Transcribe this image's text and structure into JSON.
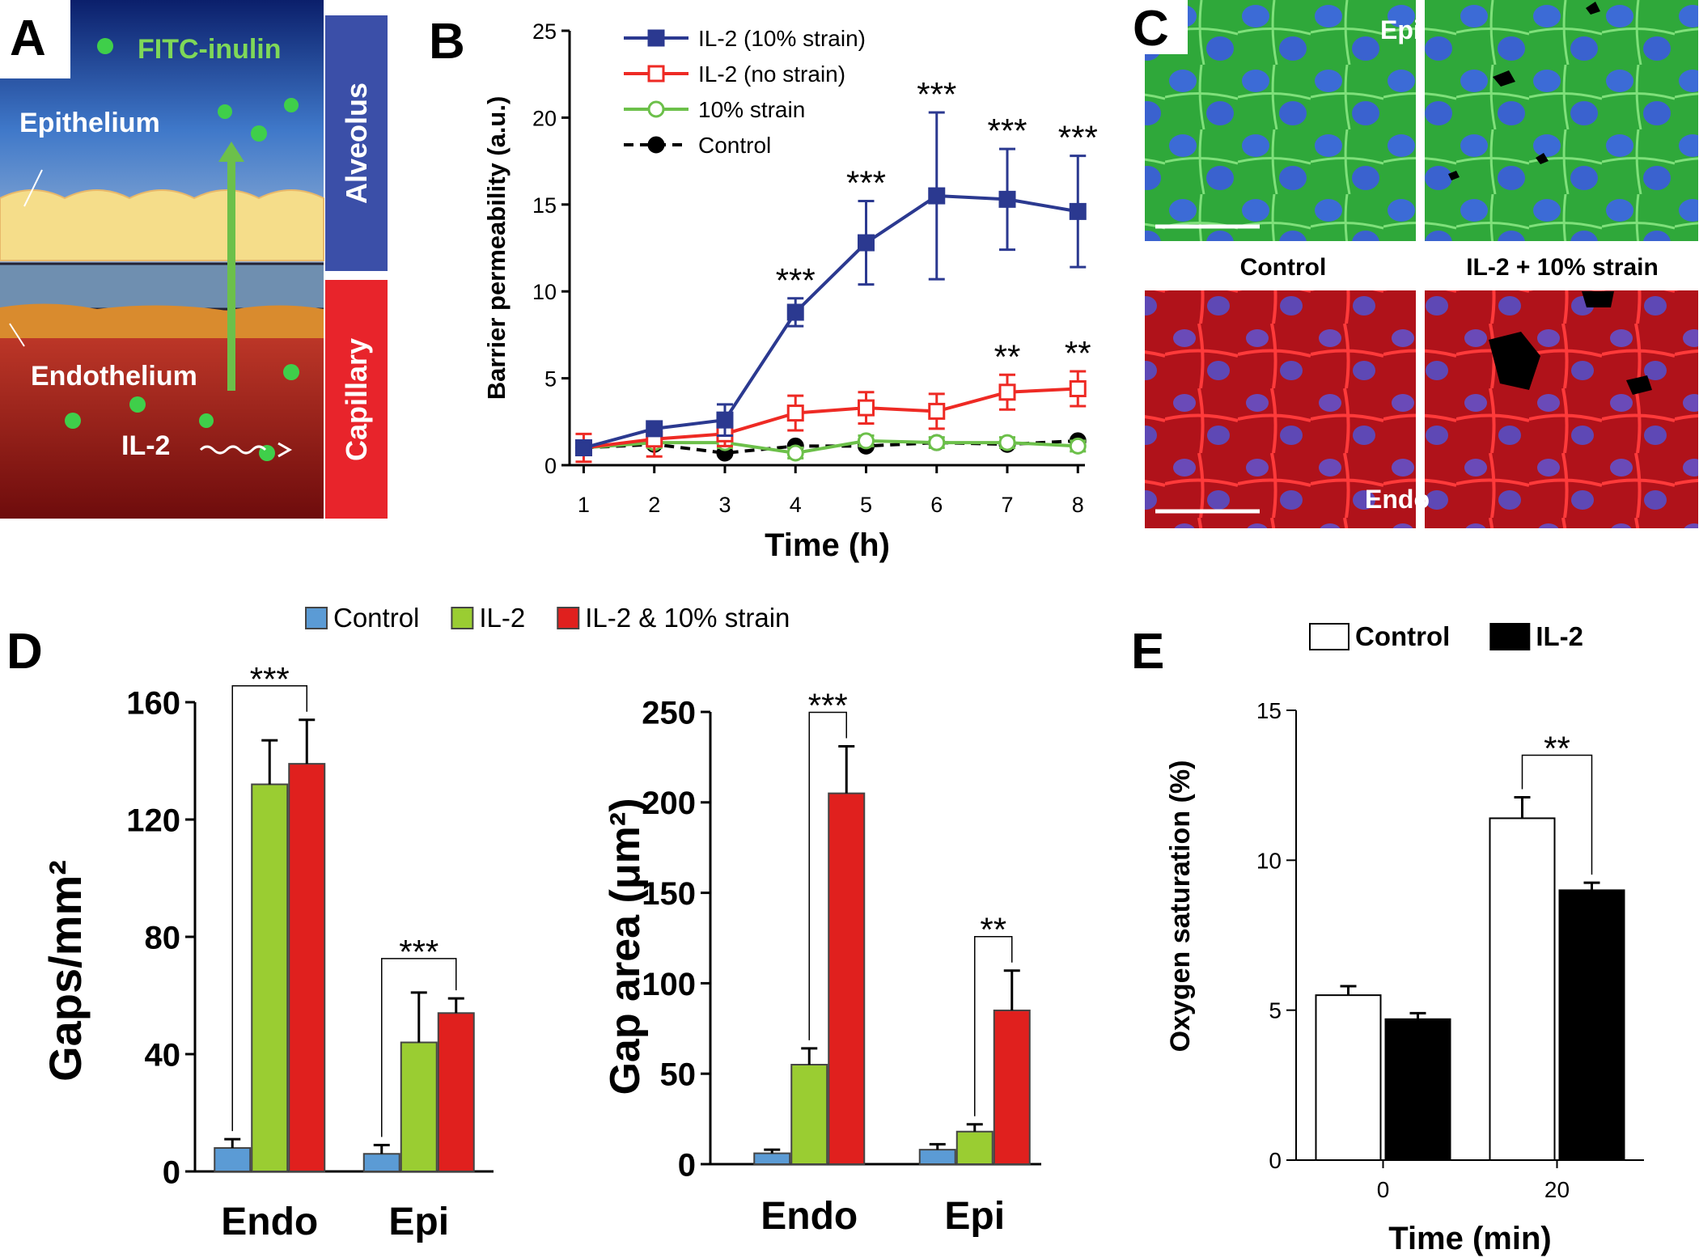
{
  "panel_labels": [
    "A",
    "B",
    "C",
    "D",
    "E"
  ],
  "diagram": {
    "tracer": "FITC-inulin",
    "epithelium": "Epithelium",
    "endothelium": "Endothelium",
    "alveolus": "Alveolus",
    "capillary": "Capillary",
    "cytokine": "IL-2"
  },
  "micrographs": {
    "top_label": "Epi",
    "bottom_label": "Endo",
    "columns": [
      "Control",
      "IL-2 + 10% strain"
    ]
  },
  "chart_data": [
    {
      "type": "line",
      "x": [
        1,
        2,
        3,
        4,
        5,
        6,
        7,
        8
      ],
      "xlim": [
        0.8,
        8.1
      ],
      "xticks": [
        1,
        2,
        3,
        4,
        5,
        6,
        7,
        8
      ],
      "ylim": [
        0,
        25
      ],
      "yticks": [
        0,
        5,
        10,
        15,
        20,
        25
      ],
      "xlabel": "Time (h)",
      "ylabel": "Barrier permeability (a.u.)",
      "legend": "upper left",
      "series": [
        {
          "name": "IL-2 (10% strain)",
          "color": "#2b3990",
          "marker": "square",
          "filled": true,
          "dashed": false,
          "values": [
            1,
            2.1,
            2.6,
            8.8,
            12.8,
            15.5,
            15.3,
            14.6
          ],
          "errors": [
            0.3,
            0.4,
            0.9,
            0.8,
            2.4,
            4.8,
            2.9,
            3.2
          ],
          "significance": [
            null,
            null,
            null,
            "***",
            "***",
            "***",
            "***",
            "***"
          ]
        },
        {
          "name": "IL-2 (no strain)",
          "color": "#ee2a24",
          "marker": "square",
          "filled": false,
          "dashed": false,
          "values": [
            1,
            1.5,
            1.8,
            3.0,
            3.3,
            3.1,
            4.2,
            4.4
          ],
          "errors": [
            0.8,
            1.0,
            0.7,
            1.0,
            0.9,
            1.0,
            1.0,
            1.0
          ],
          "significance": [
            null,
            null,
            null,
            null,
            null,
            null,
            "**",
            "**"
          ]
        },
        {
          "name": "10% strain",
          "color": "#6cc04a",
          "marker": "circle",
          "filled": false,
          "dashed": false,
          "values": [
            1,
            1.3,
            1.3,
            0.7,
            1.4,
            1.3,
            1.3,
            1.1
          ],
          "errors": [
            0.3,
            0.3,
            0.3,
            0.3,
            0.3,
            0.3,
            0.3,
            0.3
          ]
        },
        {
          "name": "Control",
          "color": "#000000",
          "marker": "circle",
          "filled": true,
          "dashed": true,
          "values": [
            1,
            1.2,
            0.7,
            1.1,
            1.1,
            1.3,
            1.2,
            1.4
          ]
        }
      ]
    },
    {
      "type": "bar",
      "categories": [
        "Endo",
        "Epi"
      ],
      "ylim": [
        0,
        160
      ],
      "yticks": [
        0,
        40,
        80,
        120,
        160
      ],
      "ylabel": "Gaps/mm²",
      "legend": "top",
      "edgecolor": "#444444",
      "bracket_series": [
        0,
        2
      ],
      "significance": [
        "***",
        "***"
      ],
      "series": [
        {
          "name": "Control",
          "color": "#5b9bd5",
          "values": [
            8,
            6
          ],
          "errors": [
            3,
            3
          ]
        },
        {
          "name": "IL-2",
          "color": "#9acd32",
          "values": [
            132,
            44
          ],
          "errors": [
            15,
            17
          ]
        },
        {
          "name": "IL-2 & 10% strain",
          "color": "#e0201e",
          "values": [
            139,
            54
          ],
          "errors": [
            15,
            5
          ]
        }
      ]
    },
    {
      "type": "bar",
      "categories": [
        "Endo",
        "Epi"
      ],
      "ylim": [
        0,
        250
      ],
      "yticks": [
        0,
        50,
        100,
        150,
        200,
        250
      ],
      "ylabel": "Gap area (μm²)",
      "edgecolor": "#444444",
      "bracket_series": [
        1,
        2
      ],
      "significance": [
        "***",
        "**"
      ],
      "series": [
        {
          "color": "#5b9bd5",
          "values": [
            6,
            8
          ],
          "errors": [
            2,
            3
          ]
        },
        {
          "color": "#9acd32",
          "values": [
            55,
            18
          ],
          "errors": [
            9,
            4
          ]
        },
        {
          "color": "#e0201e",
          "values": [
            205,
            85
          ],
          "errors": [
            26,
            22
          ]
        }
      ]
    },
    {
      "type": "bar",
      "categories": [
        "0",
        "20"
      ],
      "ylim": [
        0,
        15
      ],
      "yticks": [
        0,
        5,
        10,
        15
      ],
      "xlabel": "Time (min)",
      "ylabel": "Oxygen saturation (%)",
      "legend": "top",
      "edgecolor": "#000000",
      "bracket_series": [
        0,
        1
      ],
      "significance": [
        null,
        "**"
      ],
      "series": [
        {
          "name": "Control",
          "color": "#ffffff",
          "values": [
            5.5,
            11.4
          ],
          "errors": [
            0.3,
            0.7
          ]
        },
        {
          "name": "IL-2",
          "color": "#000000",
          "values": [
            4.7,
            9.0
          ],
          "errors": [
            0.2,
            0.25
          ]
        }
      ]
    }
  ]
}
